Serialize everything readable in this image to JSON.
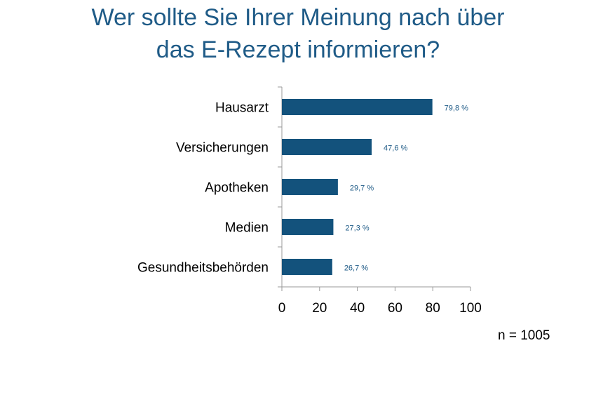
{
  "title": {
    "line1": "Wer sollte Sie Ihrer Meinung nach über",
    "line2": "das E-Rezept informieren?"
  },
  "note": "n = 1005",
  "colors": {
    "bar": "#13527c",
    "title": "#1f5b87",
    "data_label": "#1f5b87"
  },
  "chart_data": {
    "type": "bar",
    "orientation": "horizontal",
    "categories": [
      "Hausarzt",
      "Versicherungen",
      "Apotheken",
      "Medien",
      "Gesundheitsbehörden"
    ],
    "values": [
      79.8,
      47.6,
      29.7,
      27.3,
      26.7
    ],
    "data_labels": [
      "79,8 %",
      "47,6 %",
      "29,7 %",
      "27,3 %",
      "26,7 %"
    ],
    "title": "Wer sollte Sie Ihrer Meinung nach über das E-Rezept informieren?",
    "xlabel": "",
    "ylabel": "",
    "xlim": [
      0,
      100
    ],
    "xticks": [
      0,
      20,
      40,
      60,
      80,
      100
    ],
    "grid": false,
    "legend": "none"
  }
}
